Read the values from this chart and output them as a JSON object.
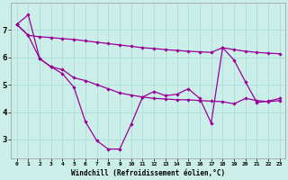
{
  "xlabel": "Windchill (Refroidissement éolien,°C)",
  "x": [
    0,
    1,
    2,
    3,
    4,
    5,
    6,
    7,
    8,
    9,
    10,
    11,
    12,
    13,
    14,
    15,
    16,
    17,
    18,
    19,
    20,
    21,
    22,
    23
  ],
  "line_top": [
    7.2,
    6.8,
    6.75,
    6.72,
    6.68,
    6.65,
    6.6,
    6.55,
    6.5,
    6.45,
    6.4,
    6.35,
    6.32,
    6.28,
    6.25,
    6.22,
    6.2,
    6.18,
    6.35,
    6.28,
    6.22,
    6.18,
    6.15,
    6.13
  ],
  "line_mid": [
    7.2,
    6.8,
    5.95,
    5.65,
    5.55,
    5.25,
    5.15,
    5.0,
    4.85,
    4.7,
    4.62,
    4.55,
    4.5,
    4.48,
    4.45,
    4.45,
    4.42,
    4.4,
    4.38,
    4.3,
    4.5,
    4.42,
    4.38,
    4.42
  ],
  "line_zigzag": [
    7.2,
    7.55,
    5.95,
    5.65,
    5.4,
    4.9,
    3.65,
    2.95,
    2.65,
    2.65,
    3.55,
    4.55,
    4.75,
    4.6,
    4.65,
    4.85,
    4.5,
    3.6,
    6.35,
    5.9,
    5.1,
    4.35,
    4.4,
    4.5
  ],
  "line_color": "#990099",
  "bg_color": "#cceee8",
  "grid_color": "#aadddd",
  "yticks": [
    3,
    4,
    5,
    6,
    7
  ],
  "ylim": [
    2.3,
    8.0
  ],
  "xlim": [
    -0.5,
    23.5
  ],
  "linewidth": 0.9,
  "markersize": 2.2
}
